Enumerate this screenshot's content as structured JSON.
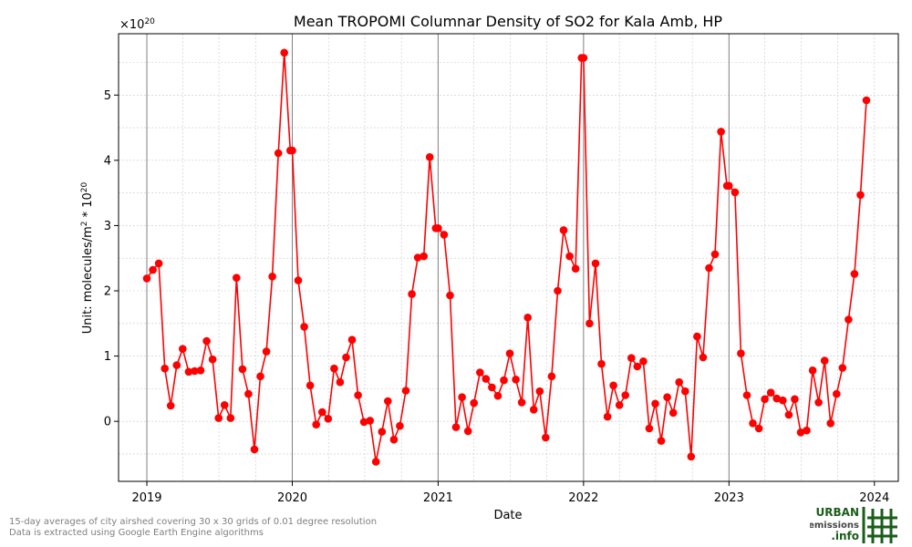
{
  "chart_data": {
    "type": "line",
    "title": "Mean TROPOMI Columnar Density of SO2 for Kala Amb, HP",
    "xlabel": "Date",
    "ylabel_prefix": "Unit: molecules/m",
    "ylabel_sup1": "2",
    "ylabel_mid": " * 10",
    "ylabel_sup2": "20",
    "offset_base": "×10",
    "offset_exp": "20",
    "x_ticks": [
      "2019",
      "2020",
      "2021",
      "2022",
      "2023",
      "2024"
    ],
    "y_ticks": [
      "0",
      "1",
      "2",
      "3",
      "4",
      "5"
    ],
    "xlim": [
      "2018-10-22",
      "2024-03-01"
    ],
    "ylim": [
      -0.92,
      5.94
    ],
    "grid": true,
    "line_color": "#ff0000",
    "dates": [
      "2019-01-01",
      "2019-01-16",
      "2019-01-31",
      "2019-02-15",
      "2019-03-02",
      "2019-03-17",
      "2019-04-01",
      "2019-04-16",
      "2019-05-01",
      "2019-05-16",
      "2019-05-31",
      "2019-06-15",
      "2019-06-30",
      "2019-07-15",
      "2019-07-30",
      "2019-08-14",
      "2019-08-29",
      "2019-09-13",
      "2019-09-28",
      "2019-10-13",
      "2019-10-28",
      "2019-11-12",
      "2019-11-27",
      "2019-12-12",
      "2019-12-27",
      "2020-01-01",
      "2020-01-16",
      "2020-01-31",
      "2020-02-15",
      "2020-03-01",
      "2020-03-16",
      "2020-03-31",
      "2020-04-15",
      "2020-04-30",
      "2020-05-15",
      "2020-05-30",
      "2020-06-14",
      "2020-06-29",
      "2020-07-14",
      "2020-07-29",
      "2020-08-13",
      "2020-08-28",
      "2020-09-12",
      "2020-09-27",
      "2020-10-12",
      "2020-10-27",
      "2020-11-11",
      "2020-11-26",
      "2020-12-11",
      "2020-12-26",
      "2021-01-01",
      "2021-01-16",
      "2021-01-31",
      "2021-02-15",
      "2021-03-02",
      "2021-03-17",
      "2021-04-01",
      "2021-04-16",
      "2021-05-01",
      "2021-05-16",
      "2021-05-31",
      "2021-06-15",
      "2021-06-30",
      "2021-07-15",
      "2021-07-30",
      "2021-08-14",
      "2021-08-29",
      "2021-09-13",
      "2021-09-28",
      "2021-10-13",
      "2021-10-28",
      "2021-11-12",
      "2021-11-27",
      "2021-12-12",
      "2021-12-27",
      "2022-01-01",
      "2022-01-16",
      "2022-01-31",
      "2022-02-15",
      "2022-03-02",
      "2022-03-17",
      "2022-04-01",
      "2022-04-16",
      "2022-05-01",
      "2022-05-16",
      "2022-05-31",
      "2022-06-15",
      "2022-06-30",
      "2022-07-15",
      "2022-07-30",
      "2022-08-14",
      "2022-08-29",
      "2022-09-13",
      "2022-09-28",
      "2022-10-13",
      "2022-10-28",
      "2022-11-12",
      "2022-11-27",
      "2022-12-12",
      "2022-12-27",
      "2023-01-01",
      "2023-01-16",
      "2023-01-31",
      "2023-02-15",
      "2023-03-02",
      "2023-03-17",
      "2023-04-01",
      "2023-04-16",
      "2023-05-01",
      "2023-05-16",
      "2023-05-31",
      "2023-06-15",
      "2023-06-30",
      "2023-07-15",
      "2023-07-30",
      "2023-08-14",
      "2023-08-29",
      "2023-09-13",
      "2023-09-28",
      "2023-10-13",
      "2023-10-28",
      "2023-11-12",
      "2023-11-27",
      "2023-12-12"
    ],
    "values": [
      2.19,
      2.32,
      2.42,
      0.81,
      0.24,
      0.86,
      1.11,
      0.76,
      0.77,
      0.78,
      1.23,
      0.95,
      0.05,
      0.25,
      0.05,
      2.2,
      0.8,
      0.42,
      -0.43,
      0.69,
      1.07,
      2.22,
      4.11,
      5.65,
      4.15,
      4.15,
      2.16,
      1.45,
      0.55,
      -0.05,
      0.14,
      0.04,
      0.81,
      0.6,
      0.98,
      1.25,
      0.4,
      -0.01,
      0.01,
      -0.62,
      -0.16,
      0.31,
      -0.28,
      -0.07,
      0.47,
      1.95,
      2.51,
      2.53,
      4.05,
      2.96,
      2.96,
      2.86,
      1.93,
      -0.09,
      0.37,
      -0.15,
      0.28,
      0.75,
      0.65,
      0.52,
      0.39,
      0.63,
      1.04,
      0.64,
      0.29,
      1.59,
      0.18,
      0.46,
      -0.25,
      0.69,
      2.0,
      2.93,
      2.53,
      2.34,
      5.57,
      5.57,
      1.5,
      2.42,
      0.88,
      0.07,
      0.55,
      0.25,
      0.4,
      0.97,
      0.84,
      0.92,
      -0.11,
      0.27,
      -0.3,
      0.37,
      0.13,
      0.6,
      0.46,
      -0.54,
      1.3,
      0.98,
      2.35,
      2.56,
      4.44,
      3.61,
      3.61,
      3.51,
      1.04,
      0.4,
      -0.03,
      -0.11,
      0.34,
      0.44,
      0.35,
      0.32,
      0.1,
      0.34,
      -0.17,
      -0.14,
      0.78,
      0.29,
      0.93,
      -0.03,
      0.42,
      0.82,
      1.56,
      2.26,
      3.47,
      4.92
    ]
  },
  "footnote": {
    "line1": "15-day averages of city airshed covering 30 x 30 grids of 0.01 degree resolution",
    "line2": "Data is extracted using Google Earth Engine algorithms"
  },
  "logo": {
    "line1": "URBAN",
    "line2": "emissions",
    "line3": ".info",
    "color": "#1a5e1a"
  }
}
